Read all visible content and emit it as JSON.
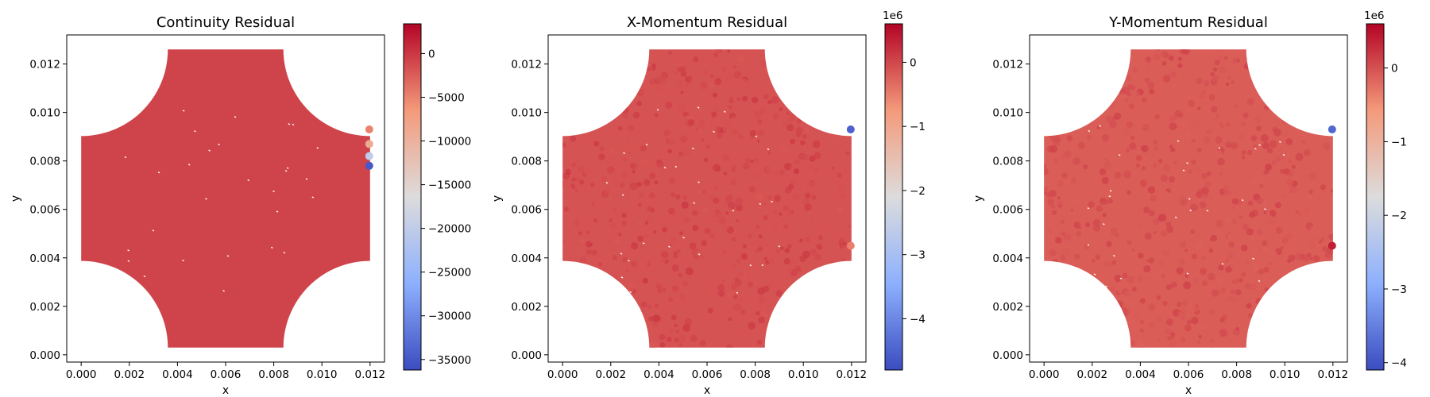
{
  "chart_data": [
    {
      "type": "scatter",
      "title": "Continuity Residual",
      "xlabel": "x",
      "ylabel": "y",
      "xlim": [
        -0.0006,
        0.0126
      ],
      "ylim": [
        -0.0003,
        0.0132
      ],
      "x_ticks": [
        "0.000",
        "0.002",
        "0.004",
        "0.006",
        "0.008",
        "0.010",
        "0.012"
      ],
      "y_ticks": [
        "0.000",
        "0.002",
        "0.004",
        "0.006",
        "0.008",
        "0.010",
        "0.012"
      ],
      "colormap": "coolwarm",
      "colorbar": {
        "min": -36200,
        "max": 3400,
        "offset_text": "",
        "ticks": [
          0,
          -5000,
          -10000,
          -15000,
          -20000,
          -25000,
          -30000,
          -35000
        ],
        "tick_labels": [
          "0",
          "−5000",
          "−10000",
          "−15000",
          "−20000",
          "−25000",
          "−30000",
          "−35000"
        ]
      },
      "domain_shape": "rectangle with four concave quarter-circle corner cutouts",
      "bulk_value": 0,
      "outliers": [
        {
          "x": 0.012,
          "y": 0.0078,
          "value": -35000
        },
        {
          "x": 0.012,
          "y": 0.0082,
          "value": -20000
        },
        {
          "x": 0.012,
          "y": 0.0087,
          "value": -9000
        },
        {
          "x": 0.012,
          "y": 0.0093,
          "value": -5000
        }
      ]
    },
    {
      "type": "scatter",
      "title": "X-Momentum Residual",
      "xlabel": "x",
      "ylabel": "y",
      "xlim": [
        -0.0006,
        0.0126
      ],
      "ylim": [
        -0.0003,
        0.0132
      ],
      "x_ticks": [
        "0.000",
        "0.002",
        "0.004",
        "0.006",
        "0.008",
        "0.010",
        "0.012"
      ],
      "y_ticks": [
        "0.000",
        "0.002",
        "0.004",
        "0.006",
        "0.008",
        "0.010",
        "0.012"
      ],
      "colormap": "coolwarm",
      "colorbar": {
        "min": -4.8,
        "max": 0.6,
        "offset_text": "1e6",
        "ticks": [
          0,
          -1,
          -2,
          -3,
          -4
        ],
        "tick_labels": [
          "0",
          "−1",
          "−2",
          "−3",
          "−4"
        ]
      },
      "domain_shape": "rectangle with four concave quarter-circle corner cutouts",
      "bulk_value": 0,
      "outliers": [
        {
          "x": 0.012,
          "y": 0.0093,
          "value": -4.5
        },
        {
          "x": 0.012,
          "y": 0.0045,
          "value": -0.5
        }
      ]
    },
    {
      "type": "scatter",
      "title": "Y-Momentum Residual",
      "xlabel": "x",
      "ylabel": "y",
      "xlim": [
        -0.0006,
        0.0126
      ],
      "ylim": [
        -0.0003,
        0.0132
      ],
      "x_ticks": [
        "0.000",
        "0.002",
        "0.004",
        "0.006",
        "0.008",
        "0.010",
        "0.012"
      ],
      "y_ticks": [
        "0.000",
        "0.002",
        "0.004",
        "0.006",
        "0.008",
        "0.010",
        "0.012"
      ],
      "colormap": "coolwarm",
      "colorbar": {
        "min": -4.1,
        "max": 0.6,
        "offset_text": "1e6",
        "ticks": [
          0,
          -1,
          -2,
          -3,
          -4
        ],
        "tick_labels": [
          "0",
          "−1",
          "−2",
          "−3",
          "−4"
        ]
      },
      "domain_shape": "rectangle with four concave quarter-circle corner cutouts",
      "bulk_value": 0,
      "outliers": [
        {
          "x": 0.012,
          "y": 0.0093,
          "value": -3.8
        },
        {
          "x": 0.012,
          "y": 0.0045,
          "value": 0.4
        }
      ]
    }
  ]
}
